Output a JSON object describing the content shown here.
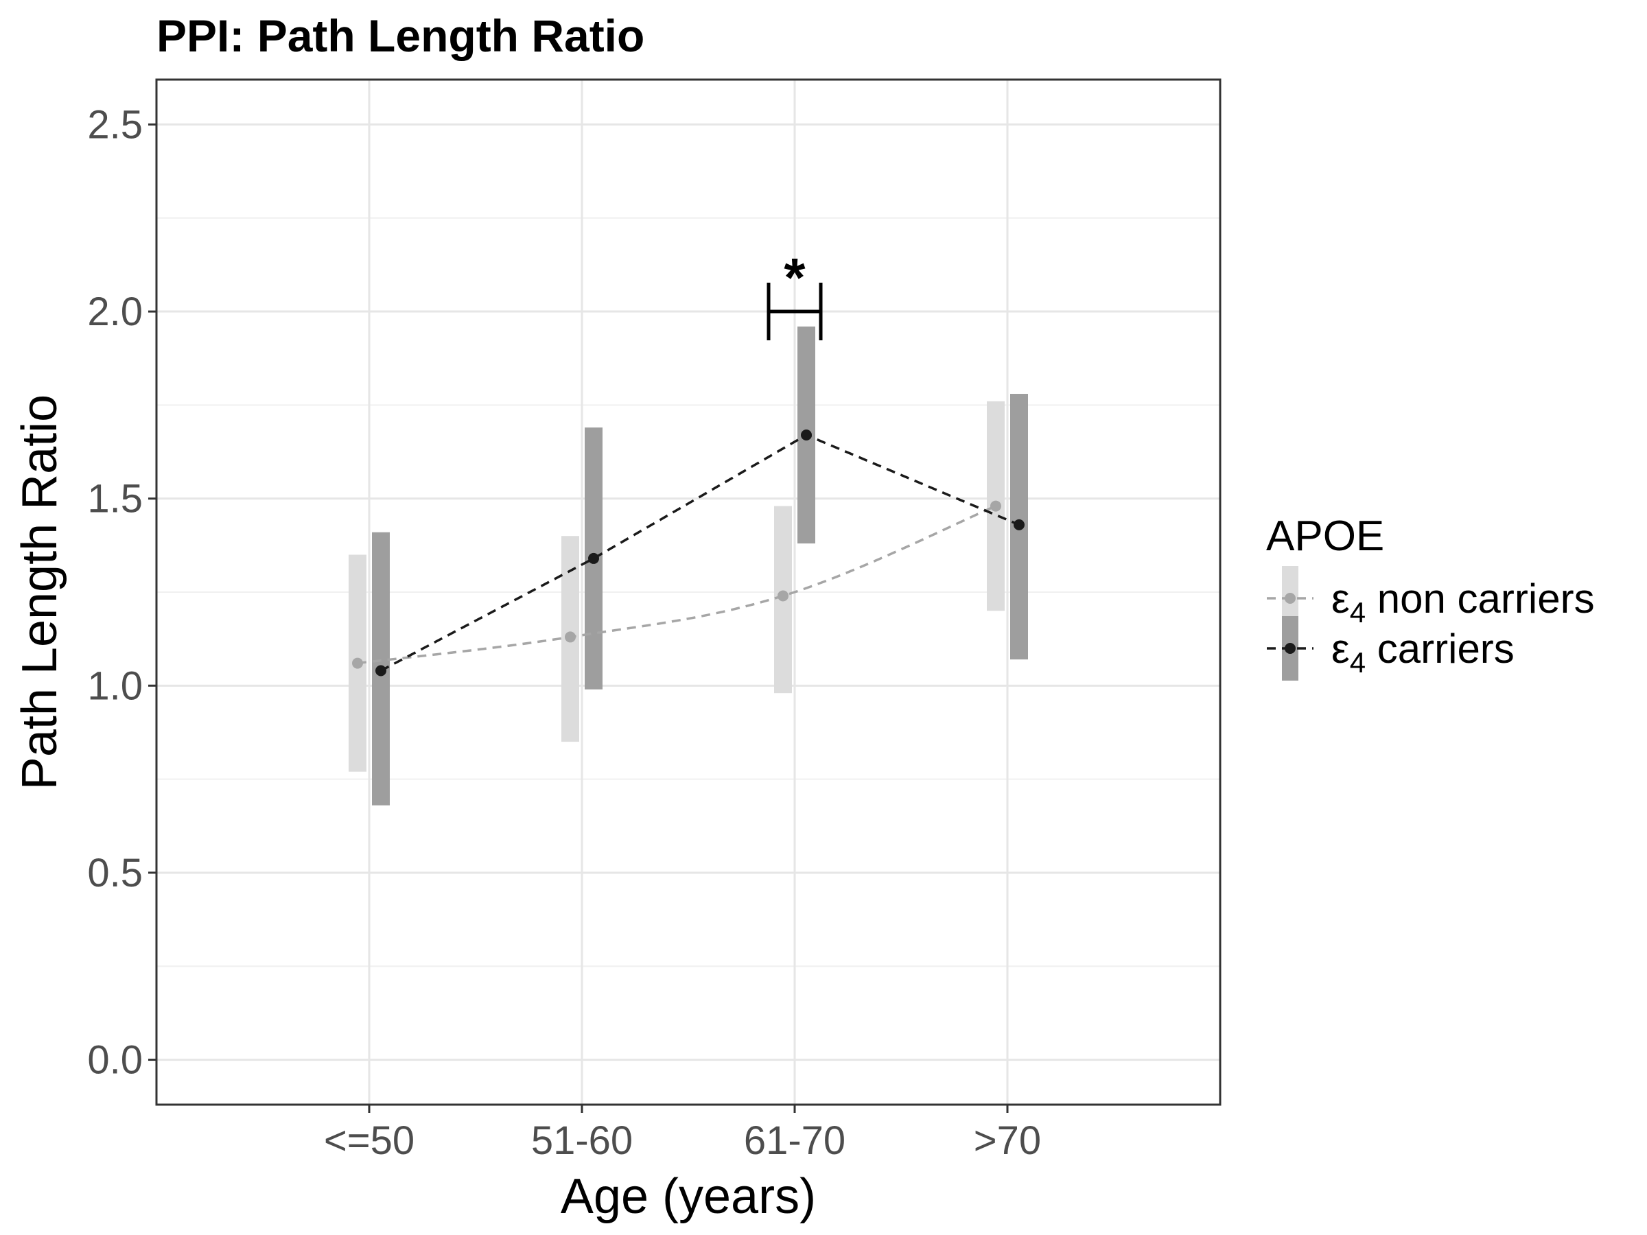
{
  "chart_data": {
    "type": "line",
    "title": "PPI: Path Length Ratio",
    "xlabel": "Age (years)",
    "ylabel": "Path Length Ratio",
    "categories": [
      "<=50",
      "51-60",
      "61-70",
      ">70"
    ],
    "ylim": [
      -0.12,
      2.62
    ],
    "yticks": [
      0.0,
      0.5,
      1.0,
      1.5,
      2.0,
      2.5
    ],
    "ytick_labels": [
      "0.0",
      "0.5",
      "1.0",
      "1.5",
      "2.0",
      "2.5"
    ],
    "grid": true,
    "legend": {
      "title": "APOE",
      "placement": "right"
    },
    "series": [
      {
        "name": "non carriers",
        "symbol": "ε",
        "subscript": "4",
        "values": [
          1.06,
          1.13,
          1.24,
          1.48
        ],
        "lower": [
          0.77,
          0.85,
          0.98,
          1.2
        ],
        "upper": [
          1.35,
          1.4,
          1.48,
          1.76
        ],
        "point_color": "#a6a6a6",
        "band_color": "#dcdcdc",
        "line_color": "#a6a6a6"
      },
      {
        "name": "carriers",
        "symbol": "ε",
        "subscript": "4",
        "values": [
          1.04,
          1.34,
          1.67,
          1.43
        ],
        "lower": [
          0.68,
          0.99,
          1.38,
          1.07
        ],
        "upper": [
          1.41,
          1.69,
          1.96,
          1.78
        ],
        "point_color": "#1a1a1a",
        "band_color": "#9e9e9e",
        "line_color": "#1a1a1a"
      }
    ],
    "annotations": [
      {
        "text": "*",
        "category": "61-70",
        "y": 2.0
      }
    ]
  }
}
